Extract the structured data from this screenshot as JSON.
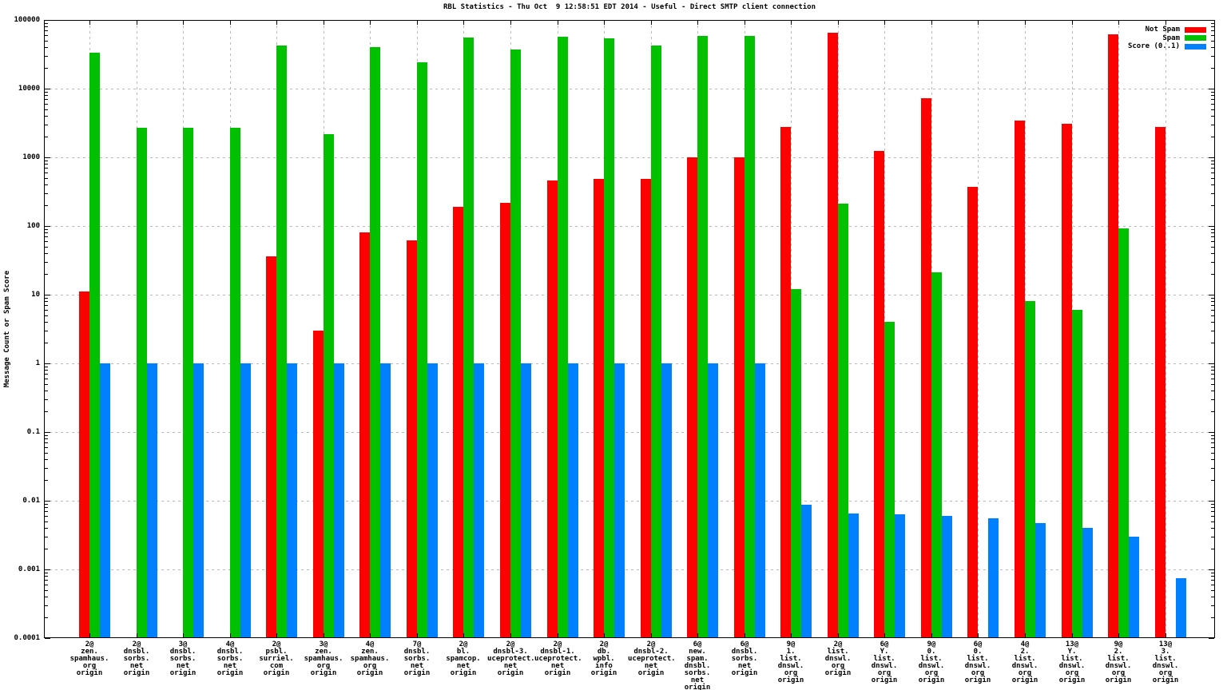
{
  "chart_data": {
    "type": "bar",
    "title": "RBL Statistics - Thu Oct  9 12:58:51 EDT 2014 - Useful - Direct SMTP client connection",
    "ylabel": "Message Count or Spam Score",
    "y_scale": "log",
    "ylim": [
      0.0001,
      100000
    ],
    "y_tick_labels": [
      "100000",
      "10000",
      "1000",
      "100",
      "10",
      "1",
      "0.1",
      "0.01",
      "0.001",
      "0.0001"
    ],
    "grid": true,
    "legend_position": "top-right-inside",
    "categories": [
      [
        "2@",
        "zen.",
        "spamhaus.",
        "org",
        "origin"
      ],
      [
        "2@",
        "dnsbl.",
        "sorbs.",
        "net",
        "origin"
      ],
      [
        "3@",
        "dnsbl.",
        "sorbs.",
        "net",
        "origin"
      ],
      [
        "4@",
        "dnsbl.",
        "sorbs.",
        "net",
        "origin"
      ],
      [
        "2@",
        "psbl.",
        "surriel.",
        "com",
        "origin"
      ],
      [
        "3@",
        "zen.",
        "spamhaus.",
        "org",
        "origin"
      ],
      [
        "4@",
        "zen.",
        "spamhaus.",
        "org",
        "origin"
      ],
      [
        "7@",
        "dnsbl.",
        "sorbs.",
        "net",
        "origin"
      ],
      [
        "2@",
        "bl.",
        "spamcop.",
        "net",
        "origin"
      ],
      [
        "2@",
        "dnsbl-3.",
        "uceprotect.",
        "net",
        "origin"
      ],
      [
        "2@",
        "dnsbl-1.",
        "uceprotect.",
        "net",
        "origin"
      ],
      [
        "2@",
        "db.",
        "wpbl.",
        "info",
        "origin"
      ],
      [
        "2@",
        "dnsbl-2.",
        "uceprotect.",
        "net",
        "origin"
      ],
      [
        "6@",
        "new.",
        "spam.",
        "dnsbl.",
        "sorbs.",
        "net",
        "origin"
      ],
      [
        "6@",
        "dnsbl.",
        "sorbs.",
        "net",
        "origin"
      ],
      [
        "9@",
        "1.",
        "list.",
        "dnswl.",
        "org",
        "origin"
      ],
      [
        "2@",
        "list.",
        "dnswl.",
        "org",
        "origin"
      ],
      [
        "6@",
        "Y.",
        "list.",
        "dnswl.",
        "org",
        "origin"
      ],
      [
        "9@",
        "0.",
        "list.",
        "dnswl.",
        "org",
        "origin"
      ],
      [
        "6@",
        "0.",
        "list.",
        "dnswl.",
        "org",
        "origin"
      ],
      [
        "4@",
        "2.",
        "list.",
        "dnswl.",
        "org",
        "origin"
      ],
      [
        "13@",
        "Y.",
        "list.",
        "dnswl.",
        "org",
        "origin"
      ],
      [
        "9@",
        "2.",
        "list.",
        "dnswl.",
        "org",
        "origin"
      ],
      [
        "13@",
        "3.",
        "list.",
        "dnswl.",
        "org",
        "origin"
      ]
    ],
    "series": [
      {
        "name": "Not Spam",
        "color": "#ff0000",
        "values": [
          11,
          null,
          null,
          null,
          36,
          3,
          80,
          62,
          190,
          215,
          460,
          490,
          480,
          1000,
          1000,
          2800,
          65000,
          1250,
          7200,
          370,
          3400,
          3100,
          62000,
          2750
        ]
      },
      {
        "name": "Spam",
        "color": "#00c000",
        "values": [
          33000,
          2700,
          2700,
          2700,
          42000,
          2200,
          40000,
          24000,
          55000,
          37000,
          57000,
          54000,
          42000,
          58000,
          58000,
          12,
          210,
          4,
          21,
          null,
          8,
          6,
          92,
          null
        ]
      },
      {
        "name": "Score (0..1)",
        "color": "#0080ff",
        "values": [
          1,
          1,
          1,
          1,
          1,
          1,
          1,
          1,
          1,
          1,
          1,
          1,
          1,
          1,
          1,
          0.0088,
          0.0066,
          0.0063,
          0.006,
          0.0055,
          0.0047,
          0.004,
          0.003,
          0.00075
        ]
      }
    ]
  }
}
